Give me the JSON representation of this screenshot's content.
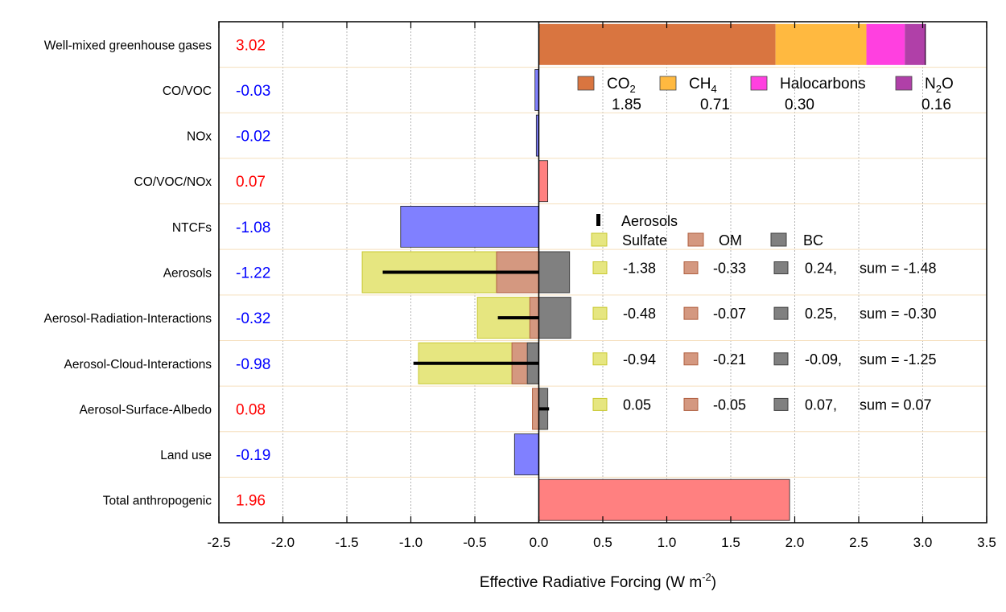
{
  "chart_data": {
    "type": "bar",
    "xlabel": "Effective Radiative Forcing (W m",
    "xlabel_sup": "-2",
    "xlabel_close": ")",
    "xlim": [
      -2.5,
      3.5
    ],
    "x_ticks": [
      -2.5,
      -2.0,
      -1.5,
      -1.0,
      -0.5,
      0.0,
      0.5,
      1.0,
      1.5,
      2.0,
      2.5,
      3.0,
      3.5
    ],
    "x_tick_labels": [
      "-2.5",
      "-2.0",
      "-1.5",
      "-1.0",
      "-0.5",
      "0.0",
      "0.5",
      "1.0",
      "1.5",
      "2.0",
      "2.5",
      "3.0",
      "3.5"
    ],
    "grid": true,
    "categories": [
      {
        "label": "Well-mixed greenhouse gases",
        "total": "3.02",
        "sign": "pos"
      },
      {
        "label": "CO/VOC",
        "total": "-0.03",
        "sign": "neg"
      },
      {
        "label": "NOx",
        "total": "-0.02",
        "sign": "neg"
      },
      {
        "label": "CO/VOC/NOx",
        "total": "0.07",
        "sign": "pos"
      },
      {
        "label": "NTCFs",
        "total": "-1.08",
        "sign": "neg"
      },
      {
        "label": "Aerosols",
        "total": "-1.22",
        "sign": "neg"
      },
      {
        "label": "Aerosol-Radiation-Interactions",
        "total": "-0.32",
        "sign": "neg"
      },
      {
        "label": "Aerosol-Cloud-Interactions",
        "total": "-0.98",
        "sign": "neg"
      },
      {
        "label": "Aerosol-Surface-Albedo",
        "total": "0.08",
        "sign": "pos"
      },
      {
        "label": "Land use",
        "total": "-0.19",
        "sign": "neg"
      },
      {
        "label": "Total anthropogenic",
        "total": "1.96",
        "sign": "pos"
      }
    ],
    "simple_bars": [
      {
        "row": 1,
        "value": -0.03,
        "color": "#8080ff"
      },
      {
        "row": 2,
        "value": -0.02,
        "color": "#8080ff"
      },
      {
        "row": 3,
        "value": 0.07,
        "color": "#ff8080"
      },
      {
        "row": 4,
        "value": -1.08,
        "color": "#8080ff"
      },
      {
        "row": 9,
        "value": -0.19,
        "color": "#8080ff"
      },
      {
        "row": 10,
        "value": 1.96,
        "color": "#ff8080"
      }
    ],
    "ghg_stack": {
      "row": 0,
      "components": [
        {
          "name": "CO",
          "sub": "2",
          "value": 1.85,
          "value_label": "1.85",
          "color": "#d97540"
        },
        {
          "name": "CH",
          "sub": "4",
          "value": 0.71,
          "value_label": "0.71",
          "color": "#ffb940"
        },
        {
          "name": "Halocarbons",
          "sub": "",
          "value": 0.3,
          "value_label": "0.30",
          "color": "#ff40e0"
        },
        {
          "name": "N",
          "sub": "2",
          "suffix": "O",
          "value": 0.16,
          "value_label": "0.16",
          "color": "#b040a8"
        }
      ]
    },
    "aerosol_series": [
      {
        "name": "Sulfate",
        "color": "#e6e680",
        "stroke": "#c8c830"
      },
      {
        "name": "OM",
        "color": "#d49880",
        "stroke": "#b06040"
      },
      {
        "name": "BC",
        "color": "#808080",
        "stroke": "#404040"
      }
    ],
    "aerosol_net_name": "Aerosols",
    "aerosol_rows": [
      {
        "row": 5,
        "sulfate": -1.38,
        "om": -0.33,
        "bc": 0.24,
        "net": -1.22,
        "labels": [
          "-1.38",
          "-0.33",
          "0.24,"
        ],
        "sum": "sum = -1.48"
      },
      {
        "row": 6,
        "sulfate": -0.48,
        "om": -0.07,
        "bc": 0.25,
        "net": -0.32,
        "labels": [
          "-0.48",
          "-0.07",
          "0.25,"
        ],
        "sum": "sum = -0.30"
      },
      {
        "row": 7,
        "sulfate": -0.94,
        "om": -0.21,
        "bc": -0.09,
        "net": -0.98,
        "labels": [
          "-0.94",
          "-0.21",
          "-0.09,"
        ],
        "sum": "sum = -1.25"
      },
      {
        "row": 8,
        "sulfate": 0.05,
        "om": -0.05,
        "bc": 0.07,
        "net": 0.08,
        "labels": [
          "0.05",
          "-0.05",
          "0.07,"
        ],
        "sum": "sum = 0.07"
      }
    ],
    "colors": {
      "positive_text": "#ff0000",
      "negative_text": "#0000ff"
    }
  }
}
